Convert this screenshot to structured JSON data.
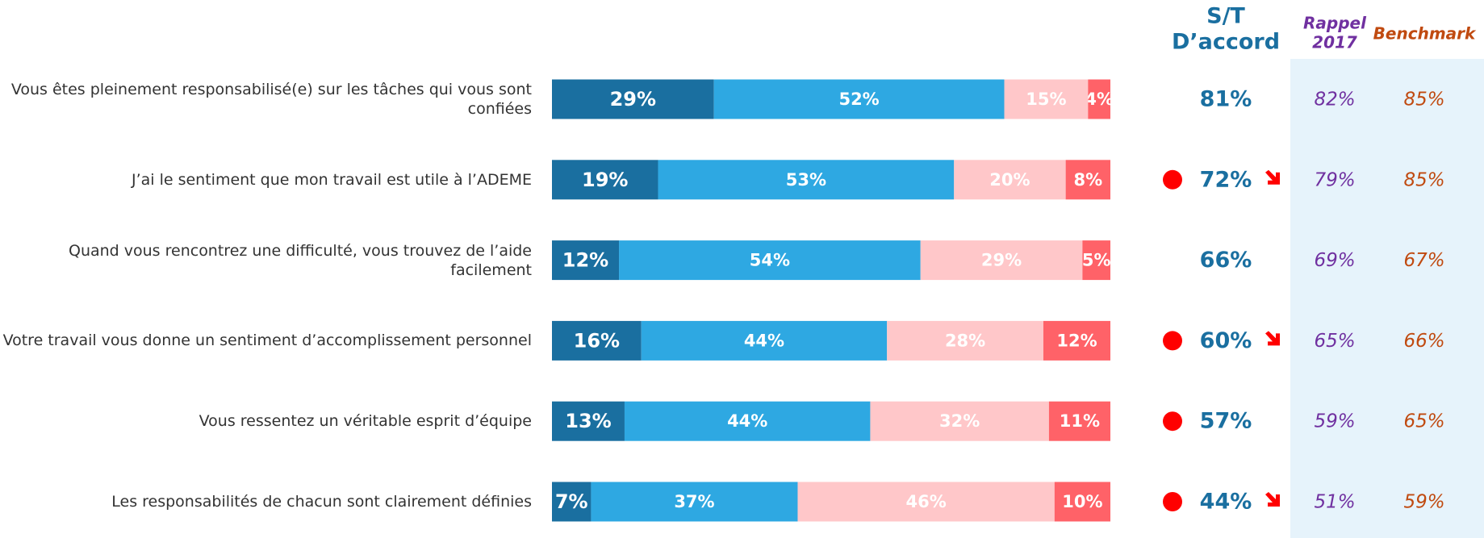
{
  "chart_data": {
    "type": "stacked-bar-h",
    "categories": [
      "Vous êtes pleinement responsabilisé(e) sur les tâches qui vous sont confiées",
      "J’ai le sentiment que mon travail est utile à l’ADEME",
      "Quand vous rencontrez une difficulté, vous trouvez de l’aide facilement",
      "Votre travail vous donne un sentiment d’accomplissement personnel",
      "Vous ressentez un véritable esprit d’équipe",
      "Les responsabilités de chacun sont clairement définies"
    ],
    "xlim": [
      0,
      100
    ],
    "series": [
      {
        "color": "#1a6fa0",
        "values": [
          29,
          19,
          12,
          16,
          13,
          7
        ],
        "value_labels": [
          "29%",
          "19%",
          "12%",
          "16%",
          "13%",
          "7%"
        ]
      },
      {
        "color": "#2ea8e2",
        "values": [
          52,
          53,
          54,
          44,
          44,
          37
        ],
        "value_labels": [
          "52%",
          "53%",
          "54%",
          "44%",
          "44%",
          "37%"
        ]
      },
      {
        "color": "#ffc7c9",
        "values": [
          15,
          20,
          29,
          28,
          32,
          46
        ],
        "value_labels": [
          "15%",
          "20%",
          "29%",
          "28%",
          "32%",
          "46%"
        ]
      },
      {
        "color": "#ff6268",
        "values": [
          4,
          8,
          5,
          12,
          11,
          10
        ],
        "value_labels": [
          "4%",
          "8%",
          "5%",
          "12%",
          "11%",
          "10%"
        ]
      }
    ],
    "columns": [
      {
        "title": [
          "S/T",
          "D’accord"
        ],
        "color": "#1a6fa0",
        "values": [
          81,
          72,
          66,
          60,
          57,
          44
        ],
        "value_labels": [
          "81%",
          "72%",
          "66%",
          "60%",
          "57%",
          "44%"
        ],
        "significant": [
          false,
          true,
          false,
          true,
          true,
          true
        ],
        "trend_down": [
          false,
          true,
          false,
          true,
          false,
          true
        ]
      },
      {
        "title": [
          "Rappel",
          "2017"
        ],
        "color": "#7030a0",
        "values": [
          82,
          79,
          69,
          65,
          59,
          51
        ],
        "value_labels": [
          "82%",
          "79%",
          "69%",
          "65%",
          "59%",
          "51%"
        ]
      },
      {
        "title": [
          "Benchmark"
        ],
        "color": "#c04a10",
        "values": [
          85,
          85,
          67,
          66,
          65,
          59
        ],
        "value_labels": [
          "85%",
          "85%",
          "67%",
          "66%",
          "65%",
          "59%"
        ]
      }
    ],
    "marker_color": "#ff0000",
    "panel_color": "#e6f3fb"
  }
}
